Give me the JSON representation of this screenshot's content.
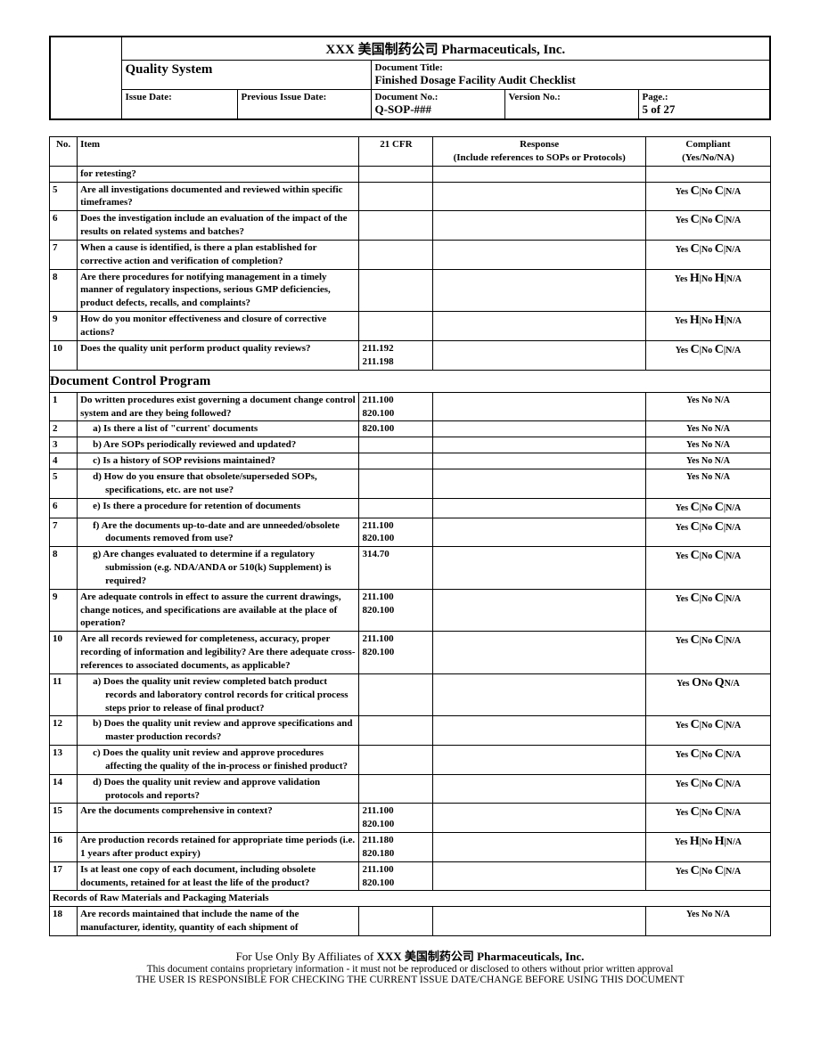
{
  "header": {
    "company": "XXX 美国制药公司 Pharmaceuticals, Inc.",
    "quality_system": "Quality System",
    "doc_title_lbl": "Document Title:",
    "doc_title": "Finished Dosage Facility Audit Checklist",
    "issue_date_lbl": "Issue Date:",
    "issue_date": "",
    "prev_issue_lbl": "Previous Issue Date:",
    "prev_issue": "",
    "doc_no_lbl": "Document No.:",
    "doc_no": "Q-SOP-###",
    "version_lbl": "Version No.:",
    "version": "",
    "page_lbl": "Page.:",
    "page": "5 of 27"
  },
  "columns": {
    "no": "No.",
    "item": "Item",
    "cfr": "21 CFR",
    "resp": "Response\n(Include references to SOPs or Protocols)",
    "comp": "Compliant\n(Yes/No/NA)"
  },
  "compliance_strings": {
    "C": {
      "y": "Yes ",
      "m1": "C",
      "sep1": "|No ",
      "m2": "C",
      "sep2": "|",
      "na": "N/A"
    },
    "H": {
      "y": "Yes ",
      "m1": "H",
      "sep1": "|No ",
      "m2": "H",
      "sep2": "|",
      "na": "N/A"
    },
    "O": {
      "y": "Yes ",
      "m1": "O",
      "sep1": "No ",
      "m2": "Q",
      "sep2": "",
      "na": "N/A"
    },
    "P": {
      "text": "Yes No N/A"
    }
  },
  "rows_a": [
    {
      "no": "",
      "item": "for retesting?",
      "cfr": "",
      "comp": ""
    },
    {
      "no": "5",
      "item": "Are all investigations documented and reviewed within specific timeframes?",
      "cfr": "",
      "comp": "C"
    },
    {
      "no": "6",
      "item": "Does the investigation include an evaluation of the impact of the results on related systems and batches?",
      "cfr": "",
      "comp": "C"
    },
    {
      "no": "7",
      "item": "When a cause is identified, is there a plan established for corrective action and verification of completion?",
      "cfr": "",
      "comp": "C"
    },
    {
      "no": "8",
      "item": "Are there procedures for notifying management in a timely manner of regulatory inspections, serious GMP deficiencies, product defects, recalls, and complaints?",
      "cfr": "",
      "comp": "H"
    },
    {
      "no": "9",
      "item": "How do you monitor effectiveness and closure of corrective actions?",
      "cfr": "",
      "comp": "H"
    },
    {
      "no": "10",
      "item": "Does the quality unit perform product quality reviews?",
      "cfr": "211.192\n211.198",
      "comp": "C"
    }
  ],
  "section_b_title": "Document Control Program",
  "rows_b": [
    {
      "no": "1",
      "item": "Do written procedures exist governing a document change control system and are they being followed?",
      "cfr": "211.100\n820.100",
      "comp": "P"
    },
    {
      "no": "2",
      "item_indent": "a) Is there a list of \"current' documents",
      "cfr": "820.100",
      "comp": "P"
    },
    {
      "no": "3",
      "item_indent": "b) Are SOPs periodically reviewed and updated?",
      "cfr": "",
      "comp": "P"
    },
    {
      "no": "4",
      "item_indent": "c) Is a history of SOP revisions maintained?",
      "cfr": "",
      "comp": "P"
    },
    {
      "no": "5",
      "item_indent": "d) How do you ensure that obsolete/superseded SOPs, specifications, etc. are not use?",
      "cfr": "",
      "comp": "P"
    },
    {
      "no": "6",
      "item_indent": "e) Is there a procedure for retention of documents",
      "cfr": "",
      "comp": "C"
    },
    {
      "no": "7",
      "item_indent": "f) Are the documents up-to-date and are unneeded/obsolete documents removed from use?",
      "cfr": "211.100\n820.100",
      "comp": "C"
    },
    {
      "no": "8",
      "item_indent": "g) Are changes evaluated to determine if a regulatory submission (e.g. NDA/ANDA or 510(k) Supplement) is required?",
      "cfr": "314.70",
      "comp": "C"
    },
    {
      "no": "9",
      "item": "Are adequate controls in effect to assure the current drawings, change notices, and specifications are available at the place of operation?",
      "cfr": "211.100\n820.100",
      "comp": "C"
    },
    {
      "no": "10",
      "item": "Are all records reviewed for completeness, accuracy, proper recording of information and legibility? Are there adequate cross-references to associated documents, as applicable?",
      "cfr": "211.100\n820.100",
      "comp": "C"
    },
    {
      "no": "11",
      "item_indent": "a) Does the quality unit review completed batch product records and laboratory control records for critical process steps prior to release of final product?",
      "cfr": "",
      "comp": "O"
    },
    {
      "no": "12",
      "item_indent": "b) Does the quality unit review and approve specifications and master production records?",
      "cfr": "",
      "comp": "C"
    },
    {
      "no": "13",
      "item_indent": "c) Does the quality unit review and approve procedures affecting the quality of the in-process or finished product?",
      "cfr": "",
      "comp": "C"
    },
    {
      "no": "14",
      "item_indent": "d) Does the quality unit review and approve validation protocols and reports?",
      "cfr": "",
      "comp": "C"
    },
    {
      "no": "15",
      "item": "Are the documents comprehensive in context?",
      "cfr": "211.100\n820.100",
      "comp": "C"
    },
    {
      "no": "16",
      "item": "Are production records retained for appropriate time periods (i.e. 1 years after product expiry)",
      "cfr": "211.180\n820.180",
      "comp": "H"
    },
    {
      "no": "17",
      "item": "Is at least one copy of each document, including obsolete documents, retained for at least the life of the product?",
      "cfr": "211.100\n820.100",
      "comp": "C"
    }
  ],
  "sub_b_title": "Records of Raw Materials and Packaging Materials",
  "rows_c": [
    {
      "no": "18",
      "item": "Are records maintained that include the name of the manufacturer, identity, quantity of each shipment of",
      "cfr": "",
      "comp": "P"
    }
  ],
  "footer": {
    "line1_a": "For Use Only By Affiliates of ",
    "line1_b": "XXX 美国制药公司 Pharmaceuticals, Inc.",
    "line2": "This document contains proprietary information - it must not be reproduced or disclosed to others without prior written approval",
    "line3": "THE USER IS RESPONSIBLE FOR CHECKING THE CURRENT ISSUE DATE/CHANGE BEFORE USING THIS DOCUMENT"
  }
}
